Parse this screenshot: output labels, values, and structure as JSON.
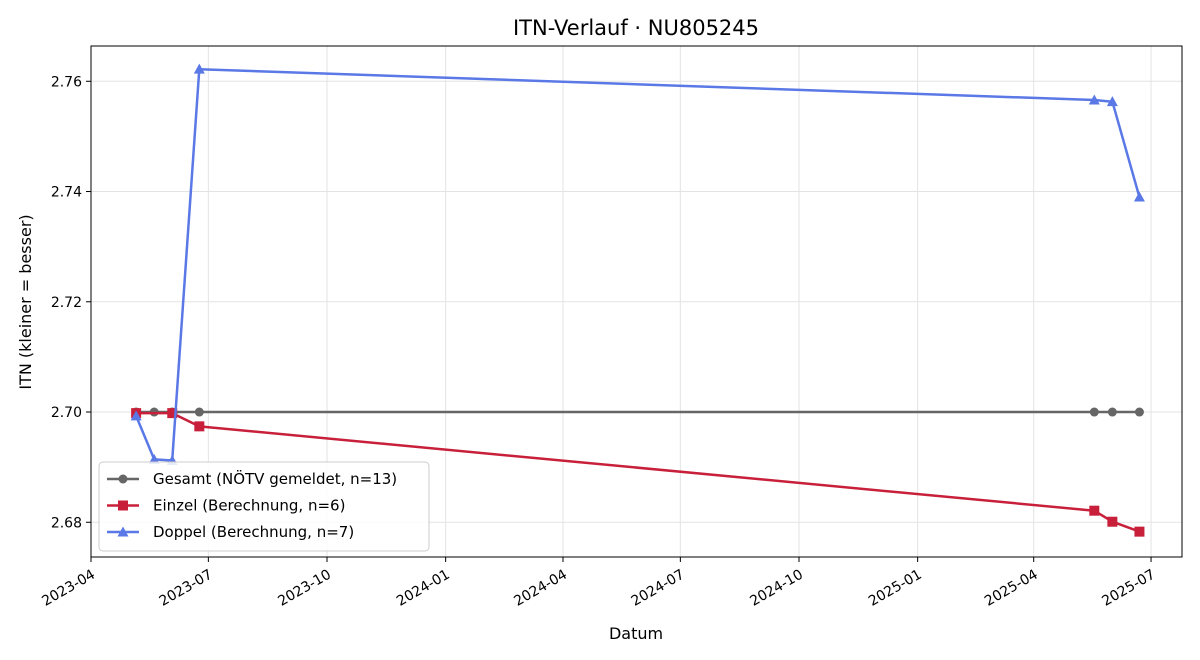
{
  "chart_data": {
    "type": "line",
    "title": "ITN-Verlauf · NU805245",
    "xlabel": "Datum",
    "ylabel": "ITN  (kleiner = besser)",
    "x_type": "date",
    "xlim": [
      "2023-04-01",
      "2025-07-25"
    ],
    "ylim": [
      2.6737,
      2.7664
    ],
    "x_ticks": [
      "2023-04",
      "2023-07",
      "2023-10",
      "2024-01",
      "2024-04",
      "2024-07",
      "2024-10",
      "2025-01",
      "2025-04",
      "2025-07"
    ],
    "y_ticks": [
      2.68,
      2.7,
      2.72,
      2.74,
      2.76
    ],
    "grid": true,
    "legend_position": "lower-left",
    "series": [
      {
        "name": "Gesamt (NÖTV gemeldet, n=13)",
        "color": "#666666",
        "marker": "circle",
        "x": [
          "2023-05-06",
          "2023-05-20",
          "2023-06-03",
          "2023-06-24",
          "2025-05-18",
          "2025-06-01",
          "2025-06-22"
        ],
        "y": [
          2.7,
          2.7,
          2.7,
          2.7,
          2.7,
          2.7,
          2.7
        ]
      },
      {
        "name": "Einzel (Berechnung, n=6)",
        "color": "#c8203a",
        "marker": "square",
        "x": [
          "2023-05-06",
          "2023-06-03",
          "2023-06-24",
          "2025-05-18",
          "2025-06-01",
          "2025-06-22"
        ],
        "y": [
          2.6998,
          2.6998,
          2.6974,
          2.6821,
          2.6801,
          2.6783
        ]
      },
      {
        "name": "Doppel (Berechnung, n=7)",
        "color": "#5a78e6",
        "marker": "triangle",
        "x": [
          "2023-05-06",
          "2023-05-20",
          "2023-06-03",
          "2023-06-24",
          "2025-05-18",
          "2025-06-01",
          "2025-06-22"
        ],
        "y": [
          2.6993,
          2.6914,
          2.6912,
          2.7622,
          2.7566,
          2.7563,
          2.739
        ]
      }
    ]
  }
}
